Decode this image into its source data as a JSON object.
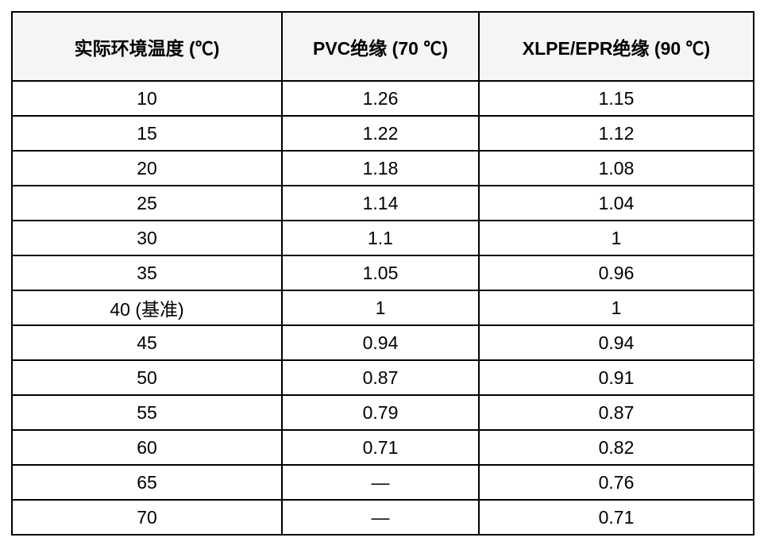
{
  "table": {
    "columns": [
      {
        "label": "实际环境温度 (℃)"
      },
      {
        "label": "PVC绝缘 (70 ℃)"
      },
      {
        "label": "XLPE/EPR绝缘 (90 ℃)"
      }
    ],
    "rows": [
      [
        "10",
        "1.26",
        "1.15"
      ],
      [
        "15",
        "1.22",
        "1.12"
      ],
      [
        "20",
        "1.18",
        "1.08"
      ],
      [
        "25",
        "1.14",
        "1.04"
      ],
      [
        "30",
        "1.1",
        "1"
      ],
      [
        "35",
        "1.05",
        "0.96"
      ],
      [
        "40 (基准)",
        "1",
        "1"
      ],
      [
        "45",
        "0.94",
        "0.94"
      ],
      [
        "50",
        "0.87",
        "0.91"
      ],
      [
        "55",
        "0.79",
        "0.87"
      ],
      [
        "60",
        "0.71",
        "0.82"
      ],
      [
        "65",
        "—",
        "0.76"
      ],
      [
        "70",
        "—",
        "0.71"
      ]
    ],
    "colors": {
      "border": "#000000",
      "header_background": "#f5f5f5",
      "body_background": "#ffffff",
      "text": "#000000"
    }
  }
}
